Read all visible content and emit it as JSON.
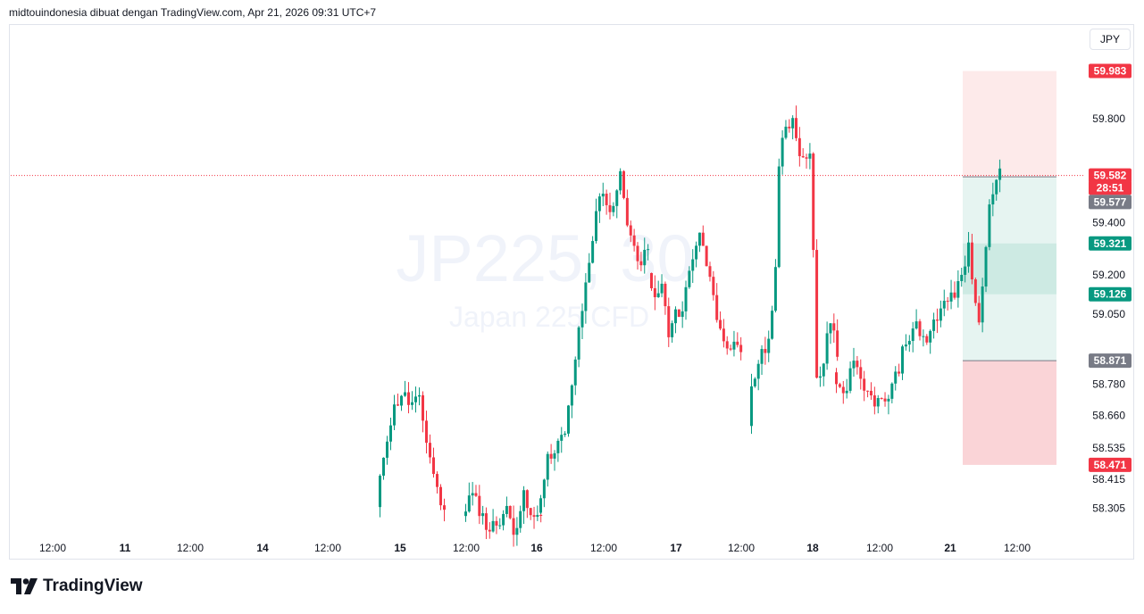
{
  "header": {
    "attribution": "midtouindonesia dibuat dengan TradingView.com, Apr 21, 2026 09:31 UTC+7"
  },
  "currency_button": "JPY",
  "watermark": {
    "symbol": "JP225, 30",
    "name": "Japan 225 CFD"
  },
  "footer": {
    "brand": "TradingView"
  },
  "colors": {
    "up": "#089981",
    "down": "#f23645",
    "price_line": "#f23645",
    "profit_zone": "#e6f4f1",
    "loss_zone_upper": "#fdeaea",
    "loss_zone_lower": "#fad4d7",
    "inner_zone": "#cdeae3",
    "gray_tag": "#787b86"
  },
  "chart_data": {
    "type": "candlestick",
    "y_range": [
      58.2,
      60.05
    ],
    "y_ticks": [
      "59.800",
      "59.400",
      "59.200",
      "59.050",
      "58.780",
      "58.660",
      "58.535",
      "58.415",
      "58.305"
    ],
    "x_ticks": [
      "12:00",
      "11",
      "12:00",
      "14",
      "12:00",
      "15",
      "12:00",
      "16",
      "12:00",
      "17",
      "12:00",
      "18",
      "12:00",
      "21",
      "12:00"
    ],
    "price_tags": [
      {
        "label": "59.983",
        "value": 59.983,
        "color": "#f23645"
      },
      {
        "label": "59.582",
        "value": 59.582,
        "color": "#f23645"
      },
      {
        "label": "28:51",
        "value": 59.535,
        "color": "#f23645"
      },
      {
        "label": "59.577",
        "value": 59.48,
        "color": "#787b86"
      },
      {
        "label": "59.321",
        "value": 59.321,
        "color": "#089981"
      },
      {
        "label": "59.126",
        "value": 59.126,
        "color": "#089981"
      },
      {
        "label": "58.871",
        "value": 58.871,
        "color": "#787b86"
      },
      {
        "label": "58.471",
        "value": 58.471,
        "color": "#f23645"
      }
    ],
    "current_price": 59.582,
    "position_tool": {
      "stop_top": 59.983,
      "entry": 59.577,
      "target_bottom": 58.871,
      "stop_bottom": 58.471,
      "inner_top": 59.321,
      "inner_bottom": 59.126
    },
    "session_closes": [
      {
        "session": "15",
        "points": [
          58.3,
          58.55,
          58.68,
          58.75,
          58.7,
          58.72,
          58.55,
          58.4,
          58.28
        ]
      },
      {
        "session": "15-16",
        "points": [
          58.28,
          58.36,
          58.3,
          58.22,
          58.25,
          58.3,
          58.22,
          58.35,
          58.25,
          58.3
        ]
      },
      {
        "session": "16",
        "points": [
          58.3,
          58.48,
          58.55,
          58.58,
          58.85,
          59.1,
          59.35,
          59.55,
          59.4,
          59.58,
          59.35,
          59.25,
          59.3
        ]
      },
      {
        "session": "17",
        "points": [
          59.2,
          59.1,
          59.2,
          58.95,
          59.1,
          59.05,
          59.2,
          59.3,
          59.35,
          59.2,
          59.1,
          58.95,
          58.9,
          58.95,
          58.9
        ]
      },
      {
        "session": "17-18",
        "points": [
          58.65,
          58.8,
          58.85,
          58.92,
          58.95,
          59.1,
          59.7,
          59.75,
          59.8,
          59.75,
          59.65,
          59.62,
          59.68,
          58.8,
          58.85,
          58.95,
          59.05,
          58.9
        ]
      },
      {
        "session": "18-21",
        "points": [
          58.8,
          58.75,
          58.85,
          58.75,
          58.72,
          58.7,
          58.8,
          58.95,
          59.0,
          58.95,
          59.05,
          59.1,
          59.15,
          59.3,
          59.0,
          59.5,
          59.58
        ]
      }
    ]
  }
}
